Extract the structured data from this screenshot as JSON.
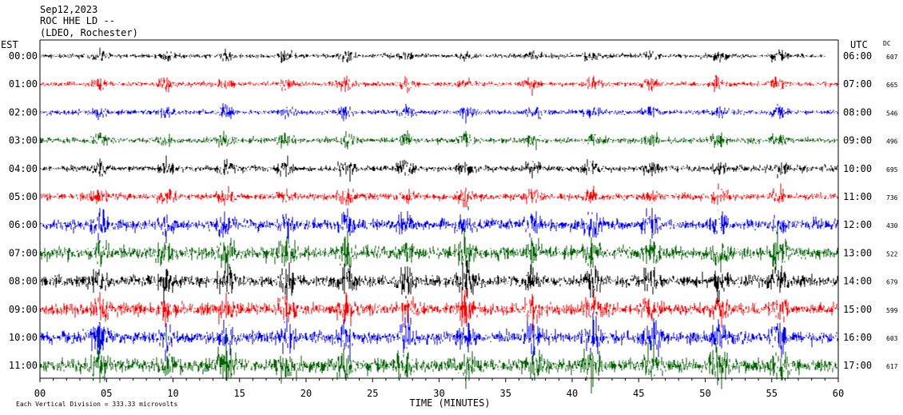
{
  "header": {
    "date": "Sep12,2023",
    "station": "ROC HHE LD --",
    "location": "(LDEO, Rochester)"
  },
  "chart_data": {
    "type": "line",
    "left_zone": "EST",
    "right_zone": "UTC",
    "dc_header": "DC",
    "xlabel": "TIME (MINUTES)",
    "xlim": [
      0,
      60
    ],
    "x_ticks": [
      "00",
      "05",
      "10",
      "15",
      "20",
      "25",
      "30",
      "35",
      "40",
      "45",
      "50",
      "55",
      "60"
    ],
    "scale_note": "Each Vertical Division = 333.33 microvolts",
    "trace_colors": [
      "#000000",
      "#ff0000",
      "#0000ff",
      "#006400"
    ],
    "rows": [
      {
        "est": "00:00",
        "utc": "06:00",
        "dc": "607",
        "amp": 0.35,
        "end": 59.0
      },
      {
        "est": "01:00",
        "utc": "07:00",
        "dc": "665",
        "amp": 0.4,
        "end": 60
      },
      {
        "est": "02:00",
        "utc": "08:00",
        "dc": "546",
        "amp": 0.4,
        "end": 60
      },
      {
        "est": "03:00",
        "utc": "09:00",
        "dc": "496",
        "amp": 0.45,
        "end": 60
      },
      {
        "est": "04:00",
        "utc": "10:00",
        "dc": "695",
        "amp": 0.5,
        "end": 60
      },
      {
        "est": "05:00",
        "utc": "11:00",
        "dc": "736",
        "amp": 0.55,
        "end": 60
      },
      {
        "est": "06:00",
        "utc": "12:00",
        "dc": "430",
        "amp": 0.85,
        "end": 60
      },
      {
        "est": "07:00",
        "utc": "13:00",
        "dc": "522",
        "amp": 1.0,
        "end": 60
      },
      {
        "est": "08:00",
        "utc": "14:00",
        "dc": "679",
        "amp": 0.95,
        "end": 60
      },
      {
        "est": "09:00",
        "utc": "15:00",
        "dc": "599",
        "amp": 0.95,
        "end": 60
      },
      {
        "est": "10:00",
        "utc": "16:00",
        "dc": "603",
        "amp": 1.0,
        "end": 60
      },
      {
        "est": "11:00",
        "utc": "17:00",
        "dc": "617",
        "amp": 1.15,
        "end": 60
      }
    ],
    "bursts_minutes": [
      4.5,
      9.5,
      14.0,
      18.5,
      23.0,
      27.5,
      32.0,
      37.0,
      41.5,
      46.0,
      51.0,
      55.5
    ]
  }
}
